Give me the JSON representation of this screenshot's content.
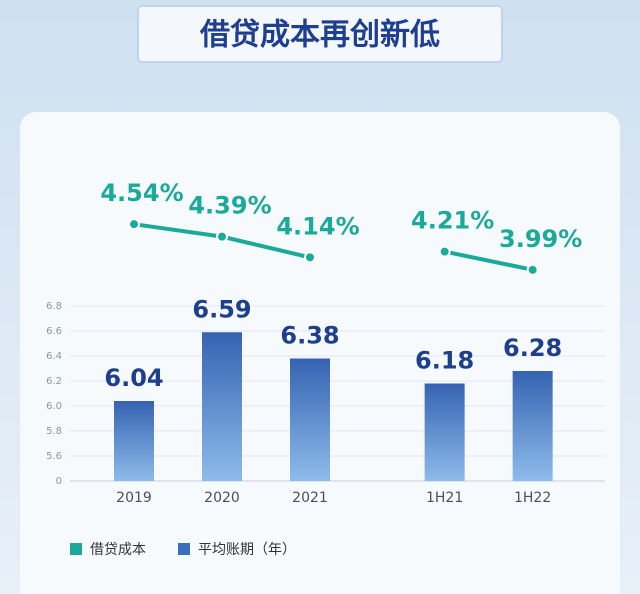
{
  "chart_data": {
    "type": "bar",
    "title": "借贷成本再创新低",
    "categories": [
      "2019",
      "2020",
      "2021",
      null,
      "1H21",
      "1H22"
    ],
    "ylim": [
      0,
      6.8
    ],
    "axis_break": [
      0,
      5.4
    ],
    "yticks": [
      0,
      5.6,
      5.8,
      {
        "value": 6,
        "label": "6.0"
      },
      6.2,
      6.4,
      6.6,
      6.8
    ],
    "y2lim": [
      3,
      5
    ],
    "grid": true,
    "series": [
      {
        "name": "借贷成本",
        "type": "line",
        "axis": "y2",
        "color": "#1aa99a",
        "values": [
          4.54,
          4.39,
          4.14,
          null,
          4.21,
          3.99
        ],
        "value_labels": [
          "4.54%",
          "4.39%",
          "4.14%",
          null,
          "4.21%",
          "3.99%"
        ]
      },
      {
        "name": "平均账期（年）",
        "type": "bar",
        "color": "#3a6fbe",
        "values": [
          6.04,
          6.59,
          6.38,
          null,
          6.18,
          6.28
        ]
      }
    ]
  }
}
